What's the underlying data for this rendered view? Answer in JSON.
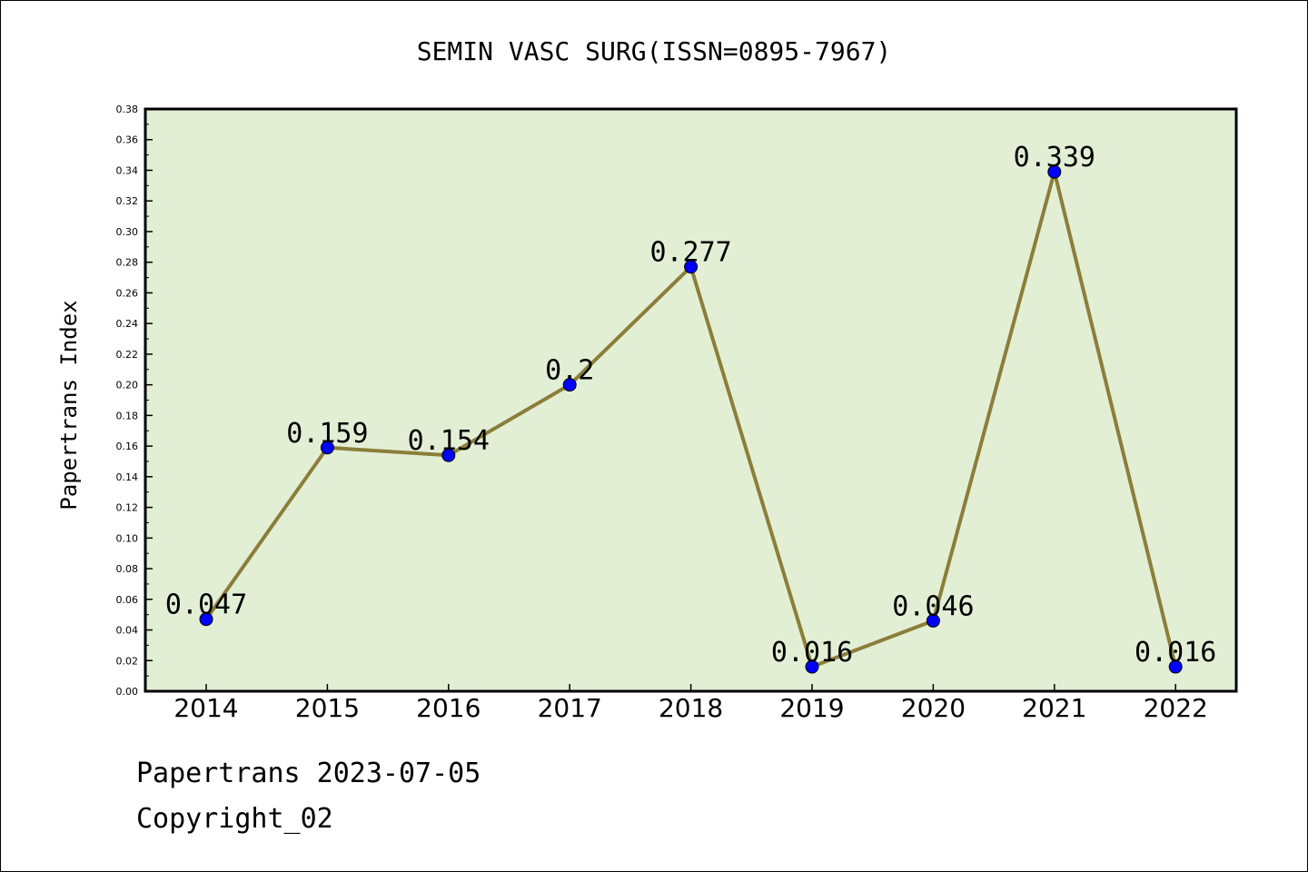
{
  "chart_data": {
    "type": "line",
    "title": "SEMIN VASC SURG(ISSN=0895-7967)",
    "xlabel": "",
    "ylabel": "Papertrans Index",
    "categories": [
      "2014",
      "2015",
      "2016",
      "2017",
      "2018",
      "2019",
      "2020",
      "2021",
      "2022"
    ],
    "series": [
      {
        "values": [
          0.047,
          0.159,
          0.154,
          0.2,
          0.277,
          0.016,
          0.046,
          0.339,
          0.016
        ],
        "labels": [
          "0.047",
          "0.159",
          "0.154",
          "0.2",
          "0.277",
          "0.016",
          "0.046",
          "0.339",
          "0.016"
        ]
      }
    ],
    "ylim": [
      0,
      0.38
    ],
    "yticks": [
      "0.00",
      "0.02",
      "0.04",
      "0.06",
      "0.08",
      "0.10",
      "0.12",
      "0.14",
      "0.16",
      "0.18",
      "0.20",
      "0.22",
      "0.24",
      "0.26",
      "0.28",
      "0.30",
      "0.32",
      "0.34",
      "0.36",
      "0.38"
    ],
    "grid": false,
    "colors": {
      "plot_background": "#e2efd5",
      "line": "#8b7e3a",
      "marker": "#0000ff"
    }
  },
  "footer": {
    "line1": "Papertrans 2023-07-05",
    "line2": "Copyright_02"
  }
}
